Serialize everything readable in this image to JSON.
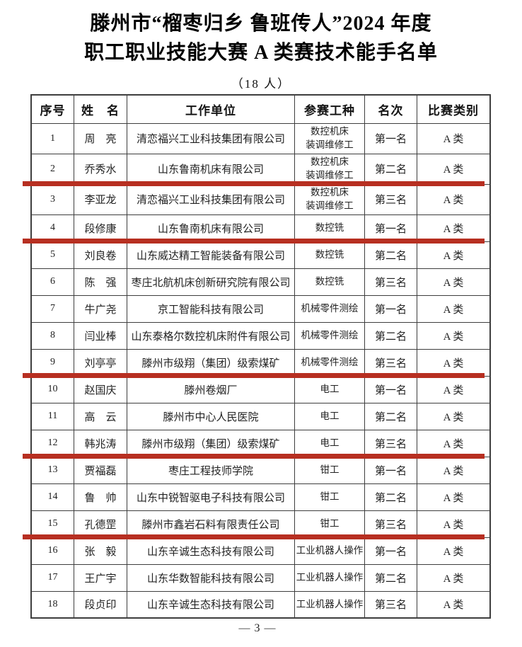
{
  "page": {
    "title_line1": "滕州市“榴枣归乡 鲁班传人”2024 年度",
    "title_line2": "职工职业技能大赛 A 类赛技术能手名单",
    "subtitle": "（18 人）",
    "footer_page_number": "— 3 —"
  },
  "colors": {
    "red_underline": "#b72f21",
    "table_border": "#3e3e3e",
    "text": "#1b1b1b"
  },
  "table": {
    "headers": [
      "序号",
      "姓　名",
      "工作单位",
      "参赛工种",
      "名次",
      "比赛类别"
    ],
    "red_line_after_rows": [
      2,
      4,
      9,
      12,
      15
    ],
    "rows": [
      {
        "no": "1",
        "name": "周　亮",
        "unit": "清恋福兴工业科技集团有限公司",
        "trade": "数控机床\n装调维修工",
        "rank": "第一名",
        "category": "A 类"
      },
      {
        "no": "2",
        "name": "乔秀水",
        "unit": "山东鲁南机床有限公司",
        "trade": "数控机床\n装调维修工",
        "rank": "第二名",
        "category": "A 类"
      },
      {
        "no": "3",
        "name": "李亚龙",
        "unit": "清恋福兴工业科技集团有限公司",
        "trade": "数控机床\n装调维修工",
        "rank": "第三名",
        "category": "A 类"
      },
      {
        "no": "4",
        "name": "段修康",
        "unit": "山东鲁南机床有限公司",
        "trade": "数控铣",
        "rank": "第一名",
        "category": "A 类"
      },
      {
        "no": "5",
        "name": "刘良卷",
        "unit": "山东威达精工智能装备有限公司",
        "trade": "数控铣",
        "rank": "第二名",
        "category": "A 类"
      },
      {
        "no": "6",
        "name": "陈　强",
        "unit": "枣庄北航机床创新研究院有限公司",
        "trade": "数控铣",
        "rank": "第三名",
        "category": "A 类"
      },
      {
        "no": "7",
        "name": "牛广尧",
        "unit": "京工智能科技有限公司",
        "trade": "机械零件测绘",
        "rank": "第一名",
        "category": "A 类"
      },
      {
        "no": "8",
        "name": "闫业棒",
        "unit": "山东泰格尔数控机床附件有限公司",
        "trade": "机械零件测绘",
        "rank": "第二名",
        "category": "A 类"
      },
      {
        "no": "9",
        "name": "刘亭亭",
        "unit": "滕州市级翔（集团）级索煤矿",
        "trade": "机械零件测绘",
        "rank": "第三名",
        "category": "A 类"
      },
      {
        "no": "10",
        "name": "赵国庆",
        "unit": "滕州卷烟厂",
        "trade": "电工",
        "rank": "第一名",
        "category": "A 类"
      },
      {
        "no": "11",
        "name": "高　云",
        "unit": "滕州市中心人民医院",
        "trade": "电工",
        "rank": "第二名",
        "category": "A 类"
      },
      {
        "no": "12",
        "name": "韩兆涛",
        "unit": "滕州市级翔（集团）级索煤矿",
        "trade": "电工",
        "rank": "第三名",
        "category": "A 类"
      },
      {
        "no": "13",
        "name": "贾福磊",
        "unit": "枣庄工程技师学院",
        "trade": "钳工",
        "rank": "第一名",
        "category": "A 类"
      },
      {
        "no": "14",
        "name": "鲁　帅",
        "unit": "山东中锐智驱电子科技有限公司",
        "trade": "钳工",
        "rank": "第二名",
        "category": "A 类"
      },
      {
        "no": "15",
        "name": "孔德罡",
        "unit": "滕州市鑫岩石料有限责任公司",
        "trade": "钳工",
        "rank": "第三名",
        "category": "A 类"
      },
      {
        "no": "16",
        "name": "张　毅",
        "unit": "山东辛诚生态科技有限公司",
        "trade": "工业机器人操作",
        "rank": "第一名",
        "category": "A 类"
      },
      {
        "no": "17",
        "name": "王广宇",
        "unit": "山东华数智能科技有限公司",
        "trade": "工业机器人操作",
        "rank": "第二名",
        "category": "A 类"
      },
      {
        "no": "18",
        "name": "段贞印",
        "unit": "山东辛诚生态科技有限公司",
        "trade": "工业机器人操作",
        "rank": "第三名",
        "category": "A 类"
      }
    ]
  }
}
